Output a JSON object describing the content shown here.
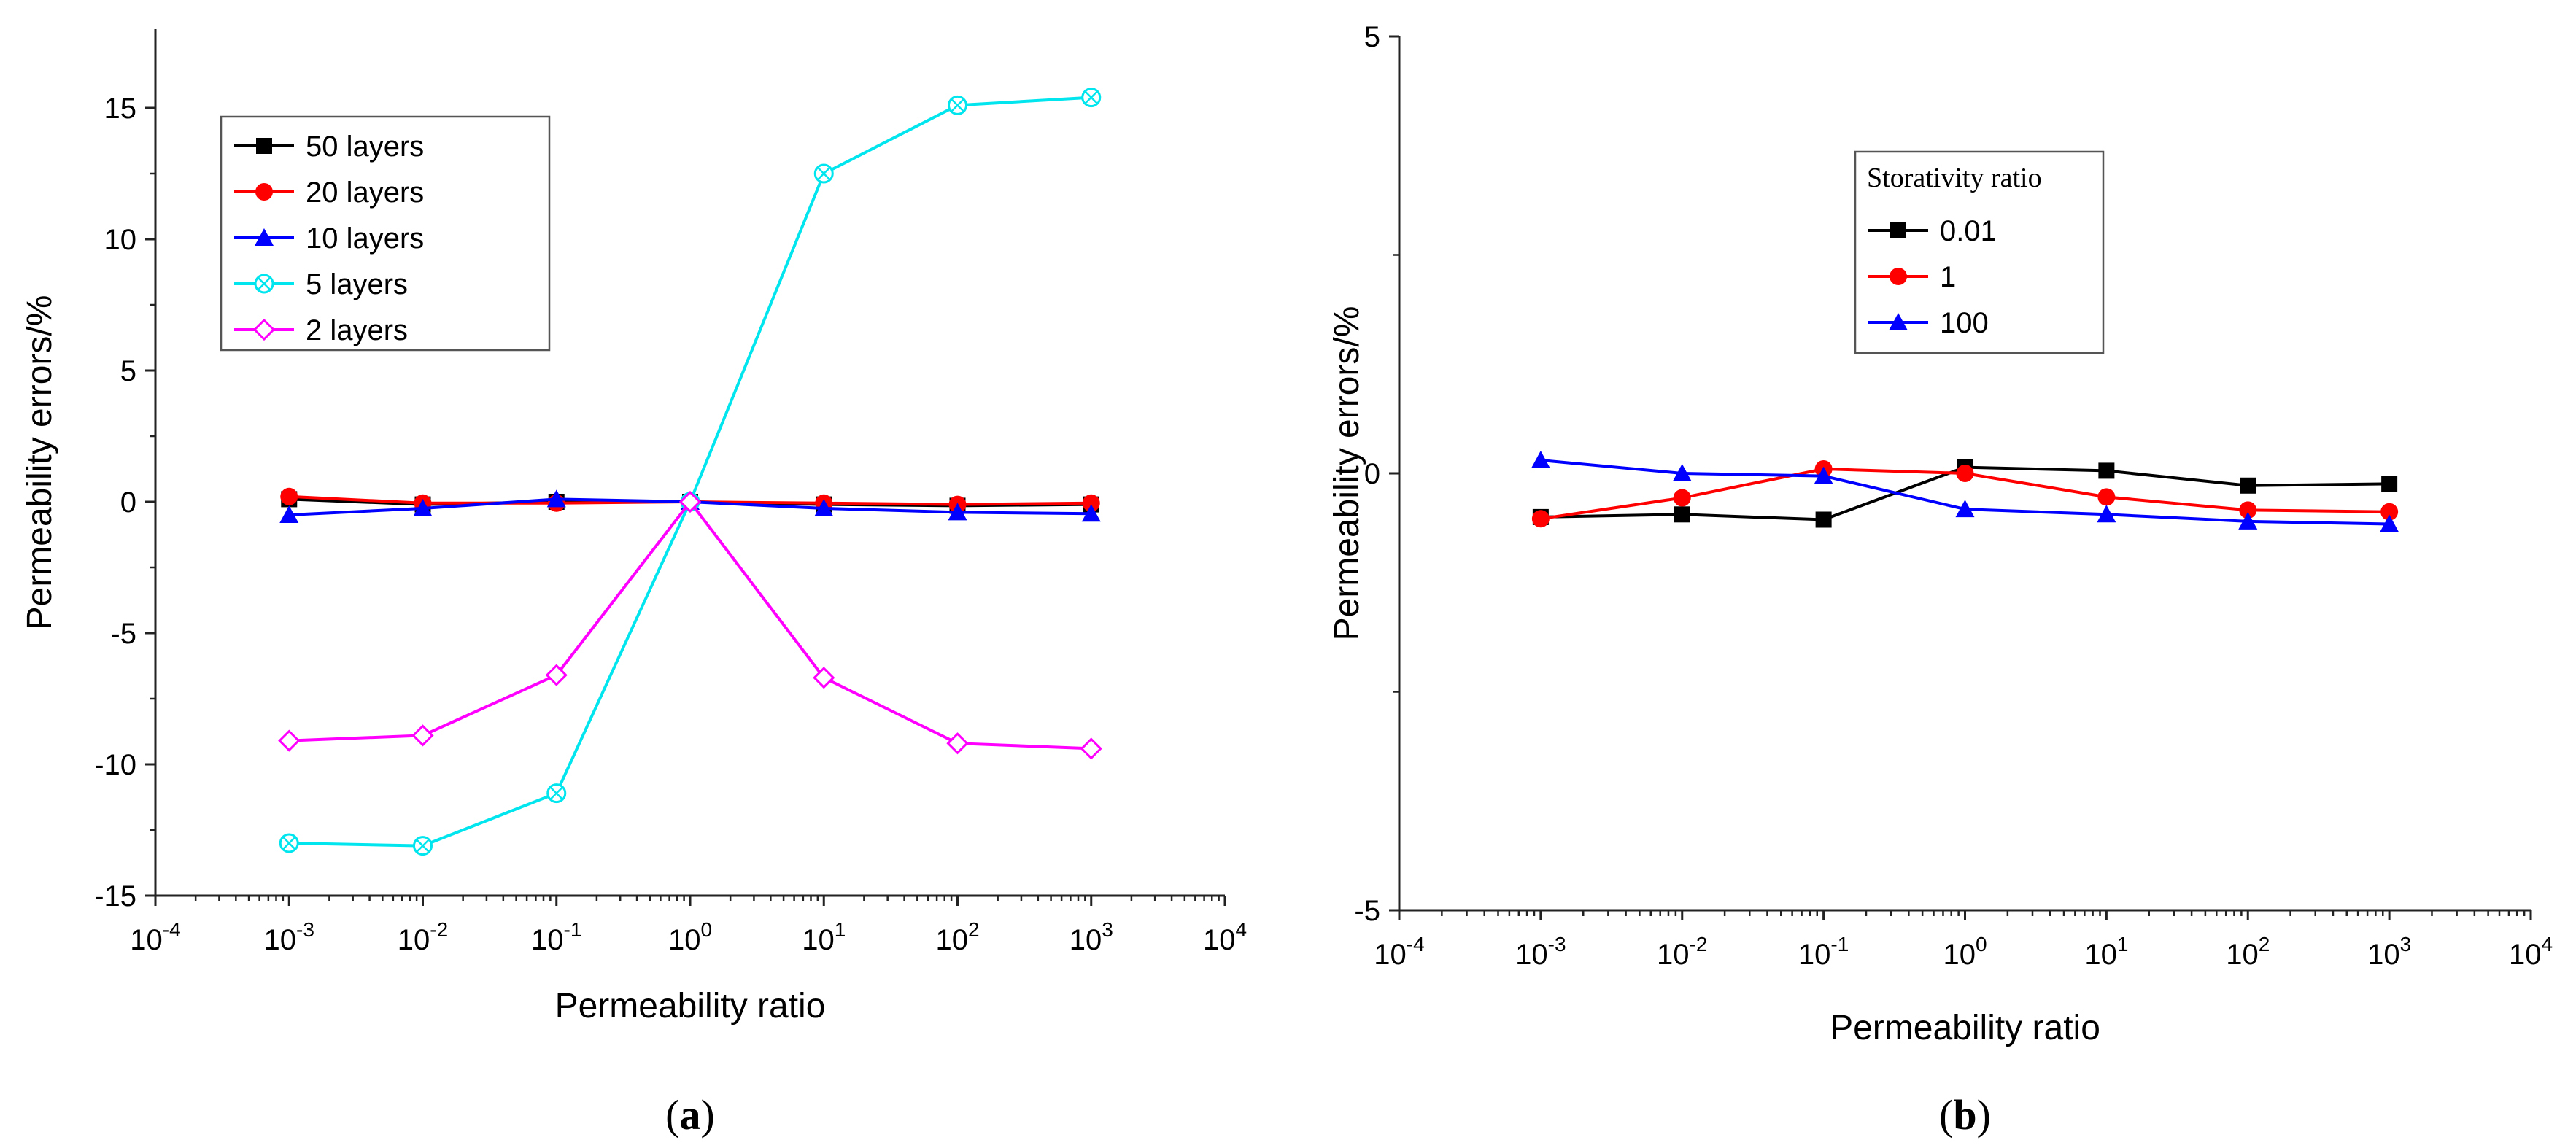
{
  "chart_data": [
    {
      "panel_label": "a",
      "type": "line",
      "xlabel": "Permeability ratio",
      "ylabel": "Permeability errors/%",
      "x_scale": "log",
      "xlim": [
        0.0001,
        10000
      ],
      "ylim": [
        -15,
        18
      ],
      "x_ticks": [
        0.0001,
        0.001,
        0.01,
        0.1,
        1,
        10,
        100,
        1000,
        10000
      ],
      "x_tick_labels": [
        {
          "base": "10",
          "exp": "-4"
        },
        {
          "base": "10",
          "exp": "-3"
        },
        {
          "base": "10",
          "exp": "-2"
        },
        {
          "base": "10",
          "exp": "-1"
        },
        {
          "base": "10",
          "exp": "0"
        },
        {
          "base": "10",
          "exp": "1"
        },
        {
          "base": "10",
          "exp": "2"
        },
        {
          "base": "10",
          "exp": "3"
        },
        {
          "base": "10",
          "exp": "4"
        }
      ],
      "y_ticks": [
        -15,
        -10,
        -5,
        0,
        5,
        10,
        15
      ],
      "y_tick_labels": [
        "-15",
        "-10",
        "-5",
        "0",
        "5",
        "10",
        "15"
      ],
      "legend_position": "top-left",
      "x": [
        0.001,
        0.01,
        0.1,
        1,
        10,
        100,
        1000
      ],
      "series": [
        {
          "name": "50 layers",
          "color": "#000000",
          "marker": "square",
          "values": [
            0.1,
            -0.1,
            0.0,
            0.0,
            -0.1,
            -0.15,
            -0.1
          ]
        },
        {
          "name": "20 layers",
          "color": "#ff0000",
          "marker": "circle",
          "values": [
            0.2,
            -0.05,
            -0.05,
            0.0,
            -0.05,
            -0.1,
            -0.05
          ]
        },
        {
          "name": "10 layers",
          "color": "#0000ff",
          "marker": "triangle",
          "values": [
            -0.5,
            -0.25,
            0.1,
            0.0,
            -0.25,
            -0.4,
            -0.45
          ]
        },
        {
          "name": "5 layers",
          "color": "#00e5ee",
          "marker": "circle-x",
          "values": [
            -13.0,
            -13.1,
            -11.1,
            0.0,
            12.5,
            15.1,
            15.4
          ]
        },
        {
          "name": "2 layers",
          "color": "#ff00ff",
          "marker": "diamond",
          "values": [
            -9.1,
            -8.9,
            -6.6,
            0.0,
            -6.7,
            -9.2,
            -9.4
          ]
        }
      ]
    },
    {
      "panel_label": "b",
      "type": "line",
      "xlabel": "Permeability ratio",
      "ylabel": "Permeability errors/%",
      "x_scale": "log",
      "xlim": [
        0.0001,
        10000
      ],
      "ylim": [
        -5,
        5
      ],
      "x_ticks": [
        0.0001,
        0.001,
        0.01,
        0.1,
        1,
        10,
        100,
        1000,
        10000
      ],
      "x_tick_labels": [
        {
          "base": "10",
          "exp": "-4"
        },
        {
          "base": "10",
          "exp": "-3"
        },
        {
          "base": "10",
          "exp": "-2"
        },
        {
          "base": "10",
          "exp": "-1"
        },
        {
          "base": "10",
          "exp": "0"
        },
        {
          "base": "10",
          "exp": "1"
        },
        {
          "base": "10",
          "exp": "2"
        },
        {
          "base": "10",
          "exp": "3"
        },
        {
          "base": "10",
          "exp": "4"
        }
      ],
      "y_ticks": [
        -5,
        0,
        5
      ],
      "y_tick_labels": [
        "-5",
        "0",
        "5"
      ],
      "legend_title": "Storativity ratio",
      "legend_position": "top-right",
      "x": [
        0.001,
        0.01,
        0.1,
        1,
        10,
        100,
        1000
      ],
      "series": [
        {
          "name": "0.01",
          "color": "#000000",
          "marker": "square",
          "values": [
            -0.5,
            -0.47,
            -0.53,
            0.07,
            0.03,
            -0.14,
            -0.12
          ]
        },
        {
          "name": "1",
          "color": "#ff0000",
          "marker": "circle",
          "values": [
            -0.52,
            -0.28,
            0.05,
            0.0,
            -0.27,
            -0.42,
            -0.44
          ]
        },
        {
          "name": "100",
          "color": "#0000ff",
          "marker": "triangle",
          "values": [
            0.15,
            0.0,
            -0.03,
            -0.41,
            -0.47,
            -0.55,
            -0.58
          ]
        }
      ]
    }
  ]
}
